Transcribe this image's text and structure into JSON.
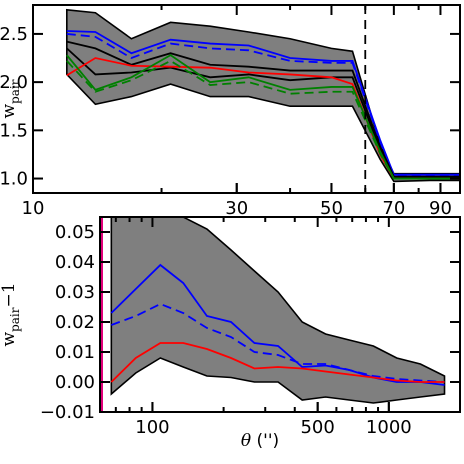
{
  "chart_data": [
    {
      "type": "line",
      "panel": "top",
      "ylabel": "w_pair",
      "ylabel_main": "w",
      "ylabel_sub": "pair",
      "xscale": "log",
      "xlim": [
        10,
        100
      ],
      "ylim": [
        0.85,
        2.8
      ],
      "x_ticks": [
        10,
        30,
        50,
        70,
        90
      ],
      "y_ticks": [
        1.0,
        1.5,
        2.0,
        2.5
      ],
      "y_tick_labels": [
        "1.0",
        "1.5",
        "2.0",
        "2.5"
      ],
      "x_tick_labels": [
        "10",
        "30",
        "50",
        "70",
        "90"
      ],
      "vline_x": 60,
      "x": [
        12,
        14,
        17,
        21,
        26,
        32,
        40,
        50,
        56,
        65,
        70,
        85,
        100
      ],
      "band_upper": [
        2.75,
        2.72,
        2.45,
        2.62,
        2.58,
        2.52,
        2.45,
        2.35,
        2.32,
        1.35,
        1.05,
        1.05,
        1.05
      ],
      "band_lower": [
        2.08,
        1.77,
        1.85,
        1.98,
        1.85,
        1.85,
        1.75,
        1.75,
        1.75,
        1.2,
        0.97,
        0.98,
        0.98
      ],
      "series": [
        {
          "color": "#0000ff",
          "style": "solid",
          "values": [
            2.53,
            2.52,
            2.3,
            2.44,
            2.4,
            2.38,
            2.25,
            2.22,
            2.22,
            1.4,
            1.04,
            1.04,
            1.04
          ]
        },
        {
          "color": "#0000ff",
          "style": "dashed",
          "values": [
            2.5,
            2.47,
            2.25,
            2.4,
            2.35,
            2.33,
            2.22,
            2.2,
            2.2,
            1.38,
            1.03,
            1.03,
            1.03
          ]
        },
        {
          "color": "#000000",
          "style": "solid",
          "values": [
            2.42,
            2.35,
            2.18,
            2.3,
            2.18,
            2.16,
            2.12,
            2.12,
            2.12,
            1.33,
            1.02,
            1.02,
            1.02
          ]
        },
        {
          "color": "#000000",
          "style": "solid",
          "values": [
            2.35,
            2.08,
            2.1,
            2.15,
            2.05,
            2.08,
            2.02,
            2.05,
            2.05,
            1.3,
            1.01,
            1.01,
            1.01
          ]
        },
        {
          "color": "#ff0000",
          "style": "solid",
          "values": [
            2.07,
            2.25,
            2.17,
            2.16,
            2.15,
            2.1,
            2.08,
            2.05,
            1.98,
            1.25,
            1.0,
            1.0,
            1.0
          ]
        },
        {
          "color": "#008000",
          "style": "solid",
          "values": [
            2.28,
            1.92,
            2.05,
            2.28,
            2.0,
            2.05,
            1.92,
            1.95,
            1.95,
            1.28,
            1.0,
            1.0,
            1.0
          ]
        },
        {
          "color": "#008000",
          "style": "dashed",
          "values": [
            2.22,
            1.9,
            2.02,
            2.22,
            1.97,
            2.0,
            1.88,
            1.9,
            1.9,
            1.26,
            1.0,
            1.0,
            1.0
          ]
        }
      ]
    },
    {
      "type": "line",
      "panel": "bottom",
      "ylabel": "w_pair-1",
      "ylabel_main": "w",
      "ylabel_sub": "pair",
      "ylabel_tail": "−1",
      "xlabel": "θ ('')",
      "xlabel_symbol": "θ",
      "xlabel_unit": " ('')",
      "xscale": "log",
      "xlim": [
        60,
        2000
      ],
      "ylim": [
        -0.01,
        0.055
      ],
      "x_ticks": [
        100,
        500,
        1000
      ],
      "x_tick_labels": [
        "100",
        "500",
        "1000"
      ],
      "y_ticks": [
        -0.01,
        0.0,
        0.01,
        0.02,
        0.03,
        0.04,
        0.05
      ],
      "y_tick_labels": [
        "−0.01",
        "0.00",
        "0.01",
        "0.02",
        "0.03",
        "0.04",
        "0.05"
      ],
      "x": [
        67,
        85,
        108,
        135,
        170,
        215,
        270,
        340,
        430,
        540,
        680,
        860,
        1080,
        1360,
        1720
      ],
      "band_upper": [
        0.055,
        0.062,
        0.064,
        0.06,
        0.051,
        0.044,
        0.037,
        0.03,
        0.02,
        0.016,
        0.014,
        0.012,
        0.008,
        0.006,
        0.002
      ],
      "band_lower": [
        -0.004,
        0.003,
        0.008,
        0.005,
        0.002,
        0.0015,
        0.0,
        0.0,
        -0.006,
        -0.005,
        -0.006,
        -0.007,
        -0.006,
        -0.005,
        -0.004
      ],
      "series": [
        {
          "color": "#0000ff",
          "style": "solid",
          "values": [
            0.023,
            0.031,
            0.039,
            0.033,
            0.022,
            0.02,
            0.013,
            0.012,
            0.005,
            0.0055,
            0.004,
            0.0015,
            0.0,
            0.0,
            -0.001
          ]
        },
        {
          "color": "#0000ff",
          "style": "dashed",
          "values": [
            0.019,
            0.022,
            0.026,
            0.023,
            0.018,
            0.015,
            0.01,
            0.009,
            0.006,
            0.006,
            0.004,
            0.002,
            0.001,
            0.0005,
            0.0
          ]
        },
        {
          "color": "#ff0000",
          "style": "solid",
          "values": [
            0.0,
            0.008,
            0.013,
            0.013,
            0.011,
            0.008,
            0.0045,
            0.005,
            0.0045,
            0.0035,
            0.0025,
            0.0015,
            0.0005,
            0.0,
            0.0
          ]
        }
      ],
      "vline_magenta_x": 65
    }
  ]
}
